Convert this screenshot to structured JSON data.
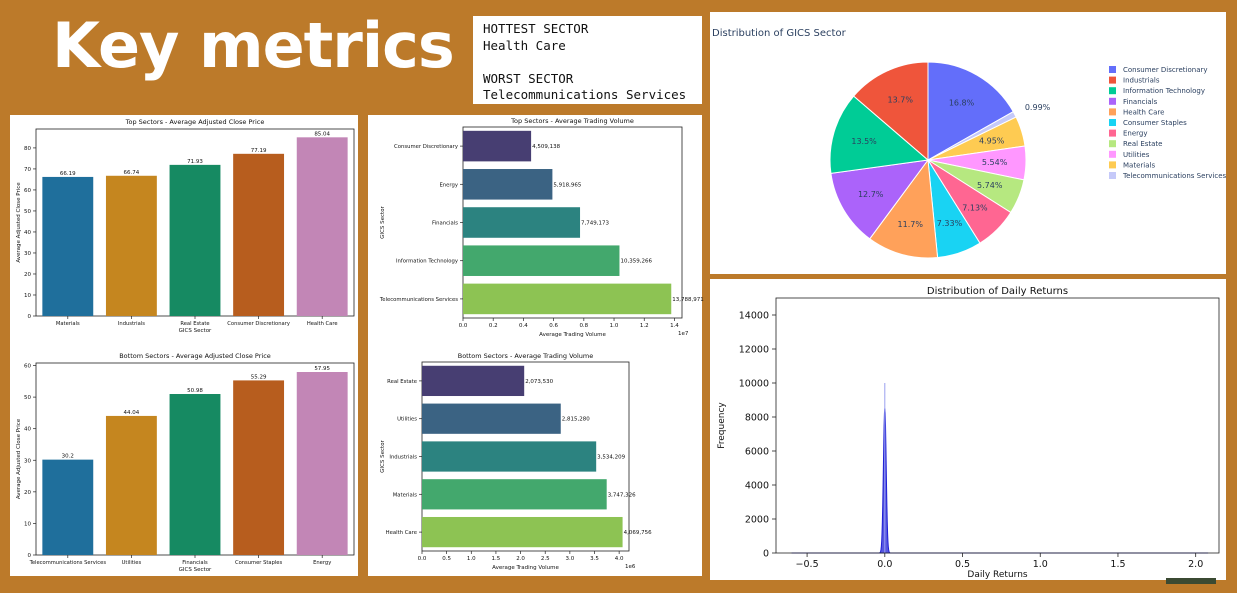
{
  "headline": "Key metrics",
  "kpi": {
    "hottest_label": "HOTTEST SECTOR",
    "hottest_value": "Health Care",
    "worst_label": "WORST SECTOR",
    "worst_value": "Telecommunications Services"
  },
  "chart_data": [
    {
      "id": "top-price",
      "type": "bar",
      "title": "Top Sectors - Average Adjusted Close Price",
      "xlabel": "GICS Sector",
      "ylabel": "Average Adjusted Close Price",
      "categories": [
        "Materials",
        "Industrials",
        "Real Estate",
        "Consumer Discretionary",
        "Health Care"
      ],
      "values": [
        66.19,
        66.74,
        71.93,
        77.19,
        85.04
      ],
      "value_labels": [
        "66.19",
        "66.74",
        "71.93",
        "77.19",
        "85.04"
      ],
      "ylim": [
        0,
        89
      ],
      "yticks": [
        0,
        10,
        20,
        30,
        40,
        50,
        60,
        70,
        80
      ],
      "colors": [
        "#1f6f9c",
        "#c5861f",
        "#168a62",
        "#b75d1e",
        "#c286b6"
      ]
    },
    {
      "id": "bottom-price",
      "type": "bar",
      "title": "Bottom Sectors - Average Adjusted Close Price",
      "xlabel": "GICS Sector",
      "ylabel": "Average Adjusted Close Price",
      "categories": [
        "Telecommunications Services",
        "Utilities",
        "Financials",
        "Consumer Staples",
        "Energy"
      ],
      "values": [
        30.2,
        44.04,
        50.98,
        55.29,
        57.95
      ],
      "value_labels": [
        "30.2",
        "44.04",
        "50.98",
        "55.29",
        "57.95"
      ],
      "ylim": [
        0,
        60.8
      ],
      "yticks": [
        0,
        10,
        20,
        30,
        40,
        50,
        60
      ],
      "colors": [
        "#1f6f9c",
        "#c5861f",
        "#168a62",
        "#b75d1e",
        "#c286b6"
      ]
    },
    {
      "id": "top-volume",
      "type": "bar",
      "orientation": "horizontal",
      "title": "Top Sectors - Average Trading Volume",
      "xlabel": "Average Trading Volume",
      "ylabel": "GICS Sector",
      "offset_label": "1e7",
      "categories": [
        "Consumer Discretionary",
        "Energy",
        "Financials",
        "Information Technology",
        "Telecommunications Services"
      ],
      "values": [
        4509138,
        5918965,
        7749173,
        10359266,
        13788971
      ],
      "value_labels": [
        "4,509,138",
        "5,918,965",
        "7,749,173",
        "10,359,266",
        "13,788,971"
      ],
      "xlim": [
        0,
        14500000
      ],
      "xticks": [
        0,
        2000000,
        4000000,
        6000000,
        8000000,
        10000000,
        12000000,
        14000000
      ],
      "xtick_labels": [
        "0.0",
        "0.2",
        "0.4",
        "0.6",
        "0.8",
        "1.0",
        "1.2",
        "1.4"
      ],
      "colors": [
        "#473e72",
        "#3b6383",
        "#2c8380",
        "#43a86d",
        "#8dc353"
      ]
    },
    {
      "id": "bottom-volume",
      "type": "bar",
      "orientation": "horizontal",
      "title": "Bottom Sectors - Average Trading Volume",
      "xlabel": "Average Trading Volume",
      "ylabel": "GICS Sector",
      "offset_label": "1e6",
      "categories": [
        "Real Estate",
        "Utilities",
        "Industrials",
        "Materials",
        "Health Care"
      ],
      "values": [
        2073530,
        2815280,
        3534209,
        3747326,
        4069756
      ],
      "value_labels": [
        "2,073,530",
        "2,815,280",
        "3,534,209",
        "3,747,326",
        "4,069,756"
      ],
      "xlim": [
        0,
        4200000
      ],
      "xticks": [
        0,
        500000,
        1000000,
        1500000,
        2000000,
        2500000,
        3000000,
        3500000,
        4000000
      ],
      "xtick_labels": [
        "0.0",
        "0.5",
        "1.0",
        "1.5",
        "2.0",
        "2.5",
        "3.0",
        "3.5",
        "4.0"
      ],
      "colors": [
        "#473e72",
        "#3b6383",
        "#2c8380",
        "#43a86d",
        "#8dc353"
      ]
    },
    {
      "id": "sector-pie",
      "type": "pie",
      "title": "Distribution of GICS Sector",
      "legend_position": "right",
      "slices": [
        {
          "label": "Consumer Discretionary",
          "value": 16.8,
          "text": "16.8%",
          "color": "#636efa"
        },
        {
          "label": "Telecommunications Services",
          "value": 0.99,
          "text": "0.99%",
          "color": "#c5c9f9"
        },
        {
          "label": "Materials",
          "value": 4.95,
          "text": "4.95%",
          "color": "#fecb52"
        },
        {
          "label": "Utilities",
          "value": 5.54,
          "text": "5.54%",
          "color": "#ff97ff"
        },
        {
          "label": "Real Estate",
          "value": 5.74,
          "text": "5.74%",
          "color": "#b6e880"
        },
        {
          "label": "Energy",
          "value": 7.13,
          "text": "7.13%",
          "color": "#ff6692"
        },
        {
          "label": "Consumer Staples",
          "value": 7.33,
          "text": "7.33%",
          "color": "#19d3f3"
        },
        {
          "label": "Health Care",
          "value": 11.7,
          "text": "11.7%",
          "color": "#ffa15a"
        },
        {
          "label": "Financials",
          "value": 12.7,
          "text": "12.7%",
          "color": "#ab63fa"
        },
        {
          "label": "Information Technology",
          "value": 13.5,
          "text": "13.5%",
          "color": "#00cc96"
        },
        {
          "label": "Industrials",
          "value": 13.7,
          "text": "13.7%",
          "color": "#ef553b"
        }
      ],
      "legend": [
        {
          "label": "Consumer Discretionary",
          "color": "#636efa"
        },
        {
          "label": "Industrials",
          "color": "#ef553b"
        },
        {
          "label": "Information Technology",
          "color": "#00cc96"
        },
        {
          "label": "Financials",
          "color": "#ab63fa"
        },
        {
          "label": "Health Care",
          "color": "#ffa15a"
        },
        {
          "label": "Consumer Staples",
          "color": "#19d3f3"
        },
        {
          "label": "Energy",
          "color": "#ff6692"
        },
        {
          "label": "Real Estate",
          "color": "#b6e880"
        },
        {
          "label": "Utilities",
          "color": "#ff97ff"
        },
        {
          "label": "Materials",
          "color": "#fecb52"
        },
        {
          "label": "Telecommunications Services",
          "color": "#c5c9f9"
        }
      ]
    },
    {
      "id": "daily-returns",
      "type": "area",
      "title": "Distribution of Daily Returns",
      "xlabel": "Daily Returns",
      "ylabel": "Frequency",
      "xlim": [
        -0.7,
        2.15
      ],
      "ylim": [
        0,
        15000
      ],
      "xticks": [
        -0.5,
        0.0,
        0.5,
        1.0,
        1.5,
        2.0
      ],
      "xtick_labels": [
        "−0.5",
        "0.0",
        "0.5",
        "1.0",
        "1.5",
        "2.0"
      ],
      "yticks": [
        0,
        2000,
        4000,
        6000,
        8000,
        10000,
        12000,
        14000
      ],
      "ytick_labels": [
        "0",
        "2000",
        "4000",
        "6000",
        "8000",
        "10000",
        "12000",
        "14000"
      ],
      "color": "#1f1fd6",
      "density_peak": 8500,
      "spike_peak": 10000,
      "x_range": [
        -0.6,
        2.08
      ],
      "center": 0.0,
      "spread": 0.009
    }
  ]
}
